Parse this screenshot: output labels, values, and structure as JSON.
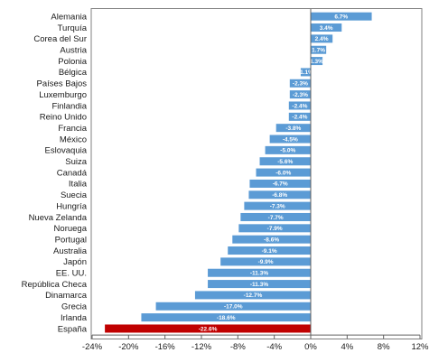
{
  "chart_data": {
    "type": "bar",
    "orientation": "horizontal",
    "categories": [
      "Alemania",
      "Turquía",
      "Corea del Sur",
      "Austria",
      "Polonia",
      "Bélgica",
      "Países Bajos",
      "Luxemburgo",
      "Finlandia",
      "Reino Unido",
      "Francia",
      "México",
      "Eslovaquia",
      "Suiza",
      "Canadá",
      "Italia",
      "Suecia",
      "Hungría",
      "Nueva Zelanda",
      "Noruega",
      "Portugal",
      "Australia",
      "Japón",
      "EE. UU.",
      "República Checa",
      "Dinamarca",
      "Grecia",
      "Irlanda",
      "España"
    ],
    "values": [
      6.7,
      3.4,
      2.4,
      1.7,
      1.3,
      -1.1,
      -2.3,
      -2.3,
      -2.4,
      -2.4,
      -3.8,
      -4.5,
      -5.0,
      -5.6,
      -6.0,
      -6.7,
      -6.8,
      -7.3,
      -7.7,
      -7.9,
      -8.6,
      -9.1,
      -9.9,
      -11.3,
      -11.3,
      -12.7,
      -17.0,
      -18.6,
      -22.6
    ],
    "data_labels": [
      "6.7%",
      "3.4%",
      "2.4%",
      "1.7%",
      "1.3%",
      "-1.1%",
      "-2.3%",
      "-2.3%",
      "-2.4%",
      "-2.4%",
      "-3.8%",
      "-4.5%",
      "-5.0%",
      "-5.6%",
      "-6.0%",
      "-6.7%",
      "-6.8%",
      "-7.3%",
      "-7.7%",
      "-7.9%",
      "-8.6%",
      "-9.1%",
      "-9.9%",
      "-11.3%",
      "-11.3%",
      "-12.7%",
      "-17.0%",
      "-18.6%",
      "-22.6%"
    ],
    "xlim": [
      -24,
      12
    ],
    "xticks": [
      -24,
      -20,
      -16,
      -12,
      -8,
      -4,
      0,
      4,
      8,
      12
    ],
    "xtick_labels": [
      "-24%",
      "-20%",
      "-16%",
      "-12%",
      "-8%",
      "-4%",
      "0%",
      "4%",
      "8%",
      "12%"
    ],
    "title": "",
    "xlabel": "",
    "ylabel": "",
    "grid": false,
    "legend": false,
    "colors": {
      "default": "#5b9bd5",
      "highlight": "#c00000",
      "highlight_category": "España"
    }
  }
}
